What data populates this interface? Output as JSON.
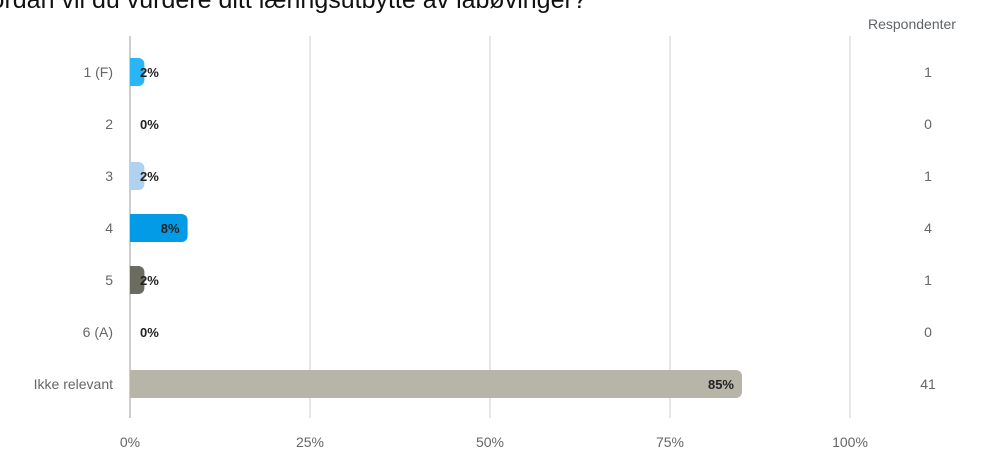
{
  "chart_data": {
    "type": "bar",
    "orientation": "horizontal",
    "title": "Hvordan vil du vurdere ditt læringsutbytte av labøvinger?",
    "categories": [
      "1 (F)",
      "2",
      "3",
      "4",
      "5",
      "6 (A)",
      "Ikke relevant"
    ],
    "values": [
      2,
      0,
      2,
      8,
      2,
      0,
      85
    ],
    "value_labels": [
      "2%",
      "0%",
      "2%",
      "8%",
      "2%",
      "0%",
      "85%"
    ],
    "respondents_header": "Respondenter",
    "respondents": [
      1,
      0,
      1,
      4,
      1,
      0,
      41
    ],
    "xlim": [
      0,
      100
    ],
    "x_ticks": [
      "0%",
      "25%",
      "50%",
      "75%",
      "100%"
    ],
    "colors": [
      "#29b6f6",
      "#c0d8ec",
      "#aed2ef",
      "#039be5",
      "#6b6b5f",
      "#9e9e9e",
      "#b6b5a8"
    ],
    "grid": true
  }
}
